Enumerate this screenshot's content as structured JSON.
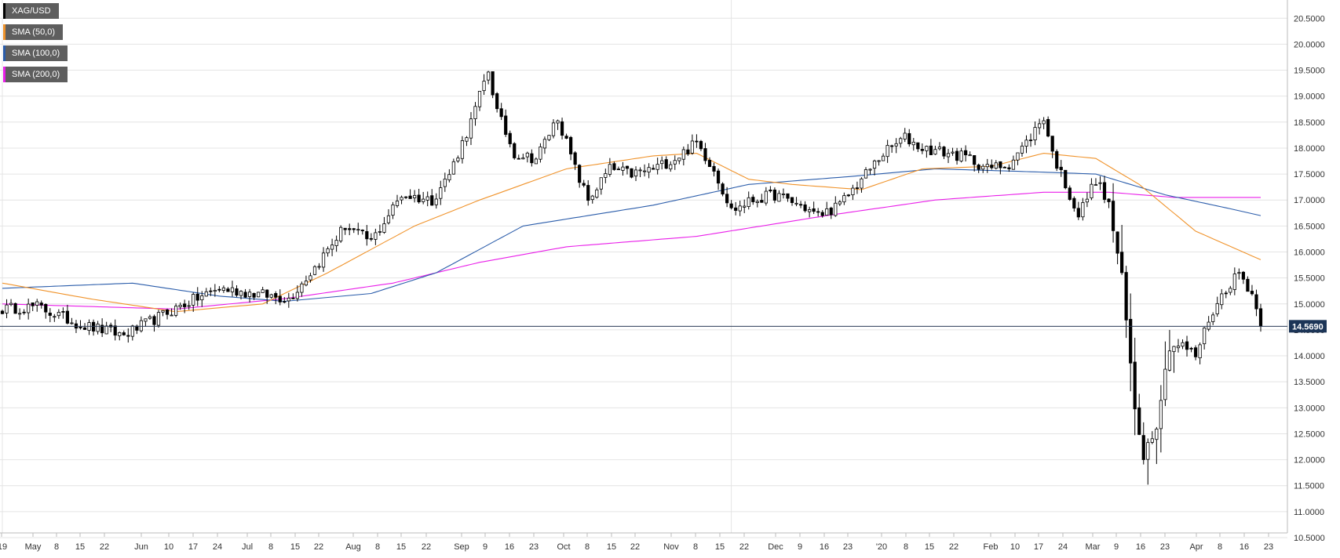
{
  "chart_data": {
    "type": "candlestick",
    "symbol": "XAG/USD",
    "timeframe": "daily",
    "legend": [
      {
        "name": "XAG/USD",
        "color": "#000000"
      },
      {
        "name": "SMA (50,0)",
        "color": "#f0932b"
      },
      {
        "name": "SMA (100,0)",
        "color": "#2a5caa"
      },
      {
        "name": "SMA (200,0)",
        "color": "#e91ee9"
      }
    ],
    "last_price": "14.5690",
    "ylim": [
      10.5,
      20.7
    ],
    "y_ticks": [
      "10.5000",
      "11.0000",
      "11.5000",
      "12.0000",
      "12.5000",
      "13.0000",
      "13.5000",
      "14.0000",
      "14.5000",
      "15.0000",
      "15.5000",
      "16.0000",
      "16.5000",
      "17.0000",
      "17.5000",
      "18.0000",
      "18.5000",
      "19.0000",
      "19.5000",
      "20.0000",
      "20.5000"
    ],
    "x_ticks": [
      "'19",
      "May",
      "8",
      "15",
      "22",
      "Jun",
      "10",
      "17",
      "24",
      "Jul",
      "8",
      "15",
      "22",
      "Aug",
      "8",
      "15",
      "22",
      "Sep",
      "9",
      "16",
      "23",
      "Oct",
      "8",
      "15",
      "22",
      "Nov",
      "8",
      "15",
      "22",
      "Dec",
      "9",
      "16",
      "23",
      "'20",
      "8",
      "15",
      "22",
      "Feb",
      "10",
      "17",
      "24",
      "Mar",
      "9",
      "16",
      "23",
      "Apr",
      "8",
      "16",
      "23"
    ],
    "anchors": [
      [
        0,
        14.9
      ],
      [
        8,
        14.95
      ],
      [
        18,
        14.6
      ],
      [
        28,
        14.4
      ],
      [
        35,
        14.7
      ],
      [
        42,
        15.0
      ],
      [
        50,
        15.3
      ],
      [
        58,
        15.2
      ],
      [
        66,
        15.1
      ],
      [
        72,
        15.7
      ],
      [
        79,
        16.5
      ],
      [
        85,
        16.2
      ],
      [
        92,
        17.1
      ],
      [
        99,
        17.0
      ],
      [
        103,
        17.5
      ],
      [
        108,
        18.5
      ],
      [
        112,
        19.5
      ],
      [
        114,
        18.7
      ],
      [
        118,
        17.9
      ],
      [
        123,
        17.8
      ],
      [
        128,
        18.6
      ],
      [
        132,
        17.6
      ],
      [
        135,
        17.0
      ],
      [
        140,
        17.6
      ],
      [
        145,
        17.5
      ],
      [
        150,
        17.6
      ],
      [
        155,
        17.8
      ],
      [
        160,
        18.1
      ],
      [
        164,
        17.6
      ],
      [
        168,
        16.8
      ],
      [
        173,
        17.0
      ],
      [
        178,
        17.1
      ],
      [
        184,
        16.9
      ],
      [
        188,
        16.7
      ],
      [
        193,
        16.9
      ],
      [
        198,
        17.4
      ],
      [
        203,
        17.9
      ],
      [
        208,
        18.2
      ],
      [
        212,
        18.0
      ],
      [
        218,
        17.9
      ],
      [
        223,
        17.8
      ],
      [
        227,
        17.6
      ],
      [
        232,
        17.7
      ],
      [
        236,
        18.1
      ],
      [
        240,
        18.6
      ],
      [
        242,
        17.9
      ],
      [
        245,
        17.3
      ],
      [
        248,
        16.7
      ],
      [
        252,
        17.4
      ],
      [
        255,
        16.9
      ],
      [
        258,
        15.5
      ],
      [
        261,
        13.0
      ],
      [
        263,
        12.1
      ],
      [
        266,
        12.7
      ],
      [
        269,
        14.2
      ],
      [
        272,
        14.2
      ],
      [
        275,
        14.0
      ],
      [
        278,
        14.7
      ],
      [
        282,
        15.3
      ],
      [
        285,
        15.6
      ],
      [
        288,
        15.2
      ],
      [
        290,
        14.57
      ]
    ],
    "sma50": [
      [
        0,
        15.4
      ],
      [
        20,
        15.1
      ],
      [
        40,
        14.85
      ],
      [
        60,
        15.0
      ],
      [
        75,
        15.6
      ],
      [
        95,
        16.5
      ],
      [
        110,
        17.0
      ],
      [
        130,
        17.6
      ],
      [
        150,
        17.85
      ],
      [
        160,
        17.9
      ],
      [
        172,
        17.4
      ],
      [
        182,
        17.3
      ],
      [
        198,
        17.2
      ],
      [
        212,
        17.6
      ],
      [
        228,
        17.65
      ],
      [
        240,
        17.9
      ],
      [
        252,
        17.8
      ],
      [
        262,
        17.3
      ],
      [
        275,
        16.4
      ],
      [
        290,
        15.85
      ]
    ],
    "sma100": [
      [
        0,
        15.3
      ],
      [
        30,
        15.4
      ],
      [
        50,
        15.15
      ],
      [
        65,
        15.05
      ],
      [
        85,
        15.2
      ],
      [
        100,
        15.6
      ],
      [
        120,
        16.5
      ],
      [
        150,
        16.9
      ],
      [
        172,
        17.3
      ],
      [
        195,
        17.45
      ],
      [
        215,
        17.6
      ],
      [
        235,
        17.55
      ],
      [
        252,
        17.5
      ],
      [
        268,
        17.1
      ],
      [
        282,
        16.85
      ],
      [
        290,
        16.7
      ]
    ],
    "sma200": [
      [
        0,
        15.0
      ],
      [
        40,
        14.9
      ],
      [
        65,
        15.1
      ],
      [
        90,
        15.4
      ],
      [
        110,
        15.8
      ],
      [
        130,
        16.1
      ],
      [
        160,
        16.3
      ],
      [
        190,
        16.7
      ],
      [
        215,
        17.0
      ],
      [
        240,
        17.15
      ],
      [
        255,
        17.15
      ],
      [
        270,
        17.05
      ],
      [
        290,
        17.05
      ]
    ]
  }
}
